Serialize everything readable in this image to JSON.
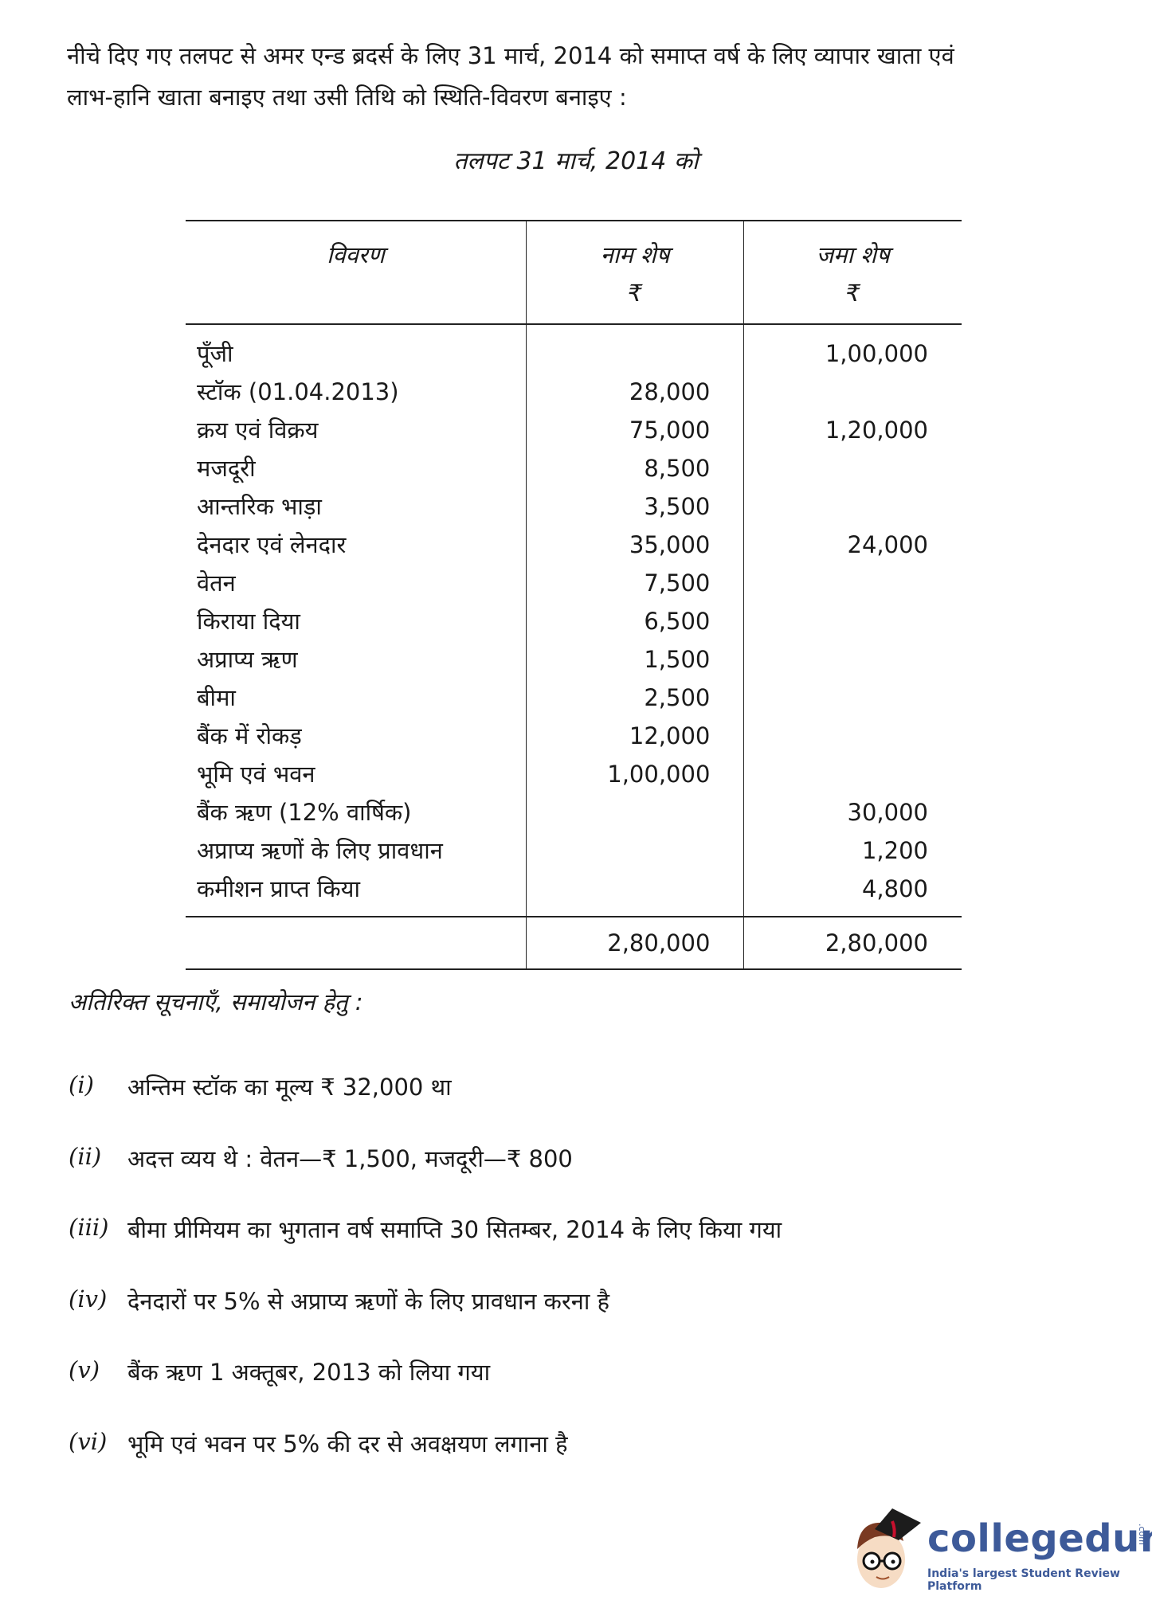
{
  "question": {
    "line1": "नीचे दिए गए तलपट से अमर एन्ड ब्रदर्स के लिए 31 मार्च, 2014 को समाप्त वर्ष के लिए व्यापार खाता एवं",
    "line2": "लाभ-हानि खाता बनाइए तथा उसी तिथि को स्थिति-विवरण बनाइए :"
  },
  "table_title": "तलपट 31 मार्च, 2014 को",
  "table": {
    "headers": {
      "particulars": "विवरण",
      "debit": "नाम शेष",
      "credit": "जमा शेष",
      "currency": "₹"
    },
    "rows": [
      {
        "item": "पूँजी",
        "debit": "",
        "credit": "1,00,000"
      },
      {
        "item": "स्टॉक (01.04.2013)",
        "debit": "28,000",
        "credit": ""
      },
      {
        "item": "क्रय एवं विक्रय",
        "debit": "75,000",
        "credit": "1,20,000"
      },
      {
        "item": "मजदूरी",
        "debit": "8,500",
        "credit": ""
      },
      {
        "item": "आन्तरिक भाड़ा",
        "debit": "3,500",
        "credit": ""
      },
      {
        "item": "देनदार एवं लेनदार",
        "debit": "35,000",
        "credit": "24,000"
      },
      {
        "item": "वेतन",
        "debit": "7,500",
        "credit": ""
      },
      {
        "item": "किराया दिया",
        "debit": "6,500",
        "credit": ""
      },
      {
        "item": "अप्राप्य ऋण",
        "debit": "1,500",
        "credit": ""
      },
      {
        "item": "बीमा",
        "debit": "2,500",
        "credit": ""
      },
      {
        "item": "बैंक में रोकड़",
        "debit": "12,000",
        "credit": ""
      },
      {
        "item": "भूमि एवं भवन",
        "debit": "1,00,000",
        "credit": ""
      },
      {
        "item": "बैंक ऋण (12% वार्षिक)",
        "debit": "",
        "credit": "30,000"
      },
      {
        "item": "अप्राप्य ऋणों के लिए प्रावधान",
        "debit": "",
        "credit": "1,200"
      },
      {
        "item": "कमीशन प्राप्त किया",
        "debit": "",
        "credit": "4,800"
      }
    ],
    "total": {
      "debit": "2,80,000",
      "credit": "2,80,000"
    }
  },
  "additional_info": {
    "heading": "अतिरिक्त सूचनाएँ, समायोजन हेतु :",
    "items": [
      {
        "num": "(i)",
        "text": "अन्तिम स्टॉक का मूल्य ₹ 32,000 था"
      },
      {
        "num": "(ii)",
        "text": "अदत्त व्यय थे : वेतन—₹ 1,500, मजदूरी—₹ 800"
      },
      {
        "num": "(iii)",
        "text": "बीमा प्रीमियम का भुगतान वर्ष समाप्ति 30 सितम्बर, 2014 के लिए किया गया"
      },
      {
        "num": "(iv)",
        "text": "देनदारों पर 5% से अप्राप्य ऋणों के लिए प्रावधान करना है"
      },
      {
        "num": "(v)",
        "text": "बैंक ऋण 1 अक्तूबर, 2013 को लिया गया"
      },
      {
        "num": "(vi)",
        "text": "भूमि एवं भवन पर 5% की दर से अवक्षयण लगाना है"
      }
    ]
  },
  "logo": {
    "name": "collegedunia",
    "suffix": ".com",
    "tagline": "India's largest Student Review Platform",
    "color": "#3d5a99"
  }
}
